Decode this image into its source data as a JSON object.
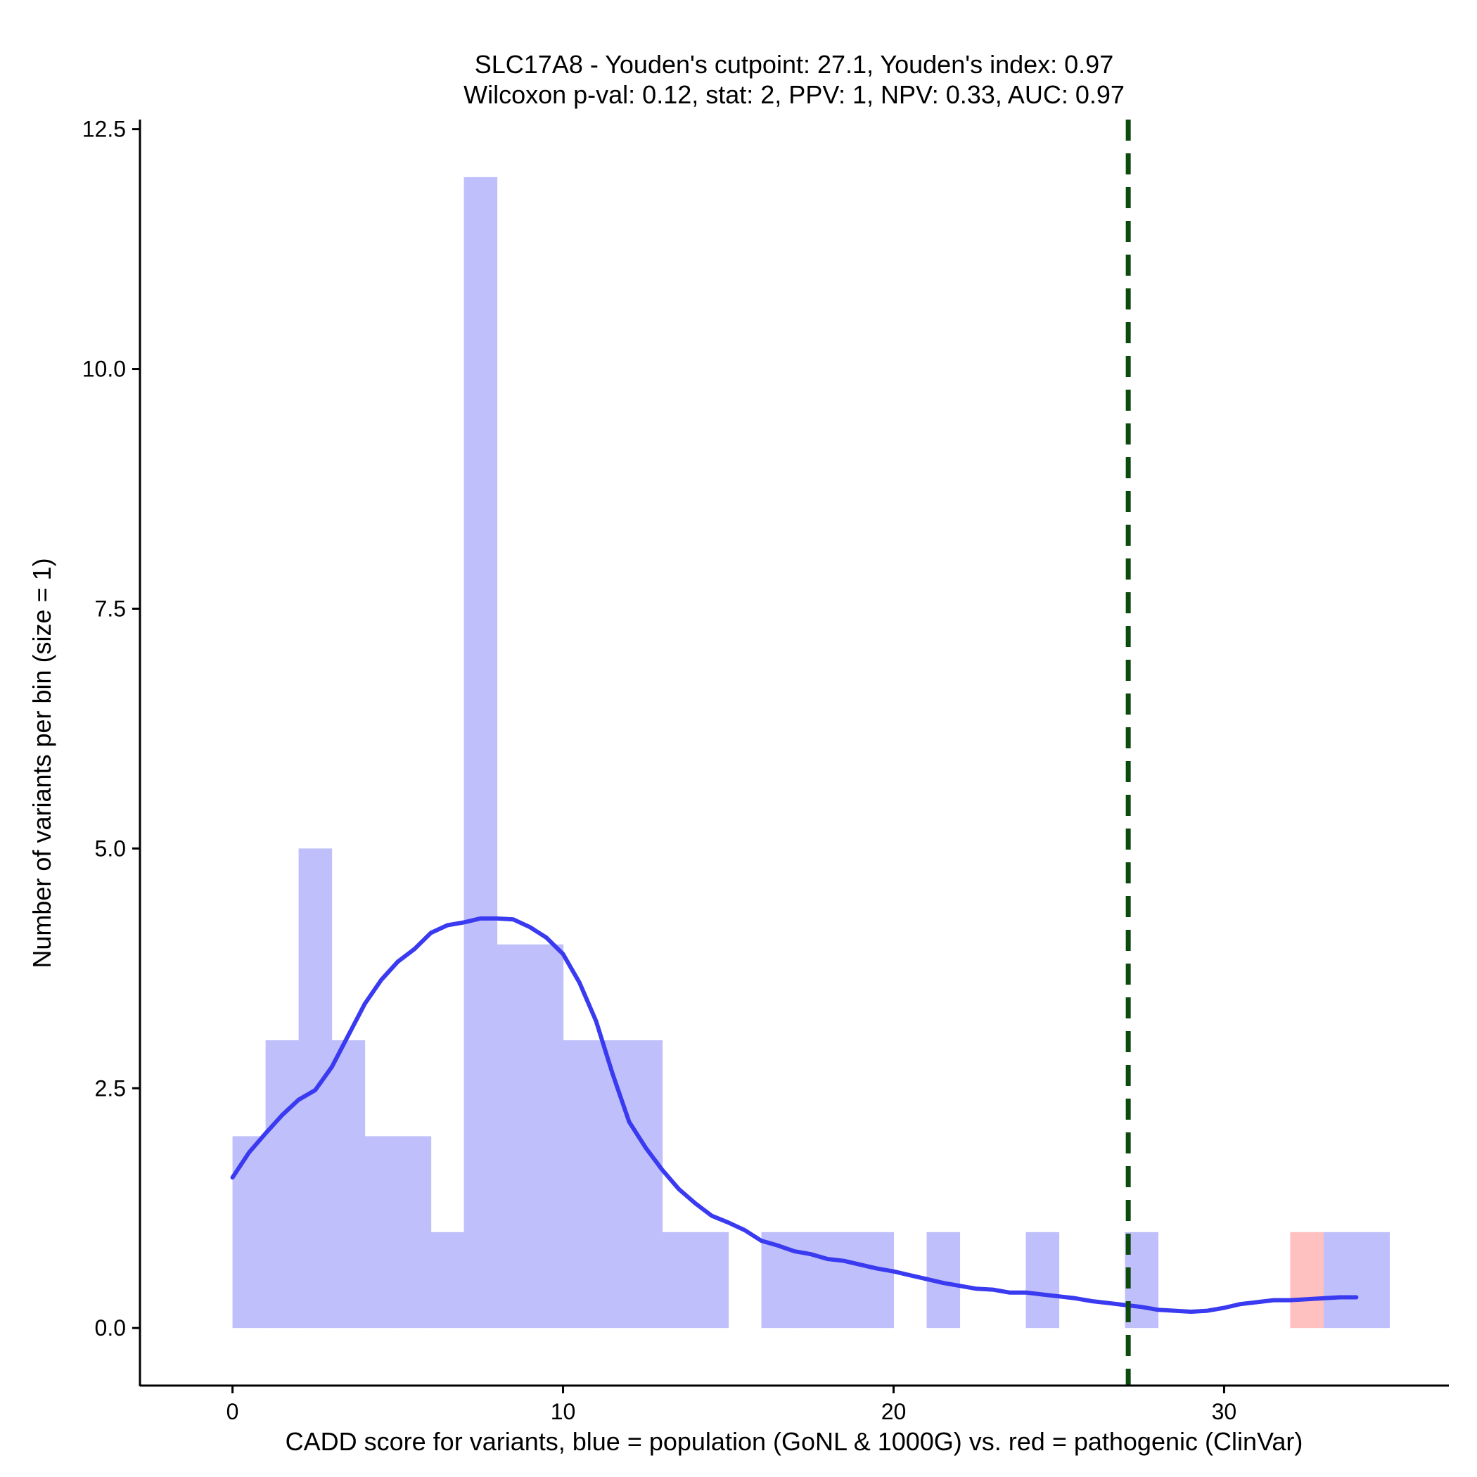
{
  "chart_data": {
    "type": "histogram",
    "title_line1": "SLC17A8 - Youden's cutpoint: 27.1, Youden's index: 0.97",
    "title_line2": "Wilcoxon p-val: 0.12, stat: 2, PPV: 1, NPV: 0.33, AUC: 0.97",
    "xlabel": "CADD score for variants, blue = population (GoNL & 1000G) vs. red = pathogenic (ClinVar)",
    "ylabel": "Number of variants per bin (size = 1)",
    "xlim": [
      -2.8,
      36.8
    ],
    "ylim": [
      -0.6,
      12.6
    ],
    "x_ticks": [
      0,
      10,
      20,
      30
    ],
    "x_tick_labels": [
      "0",
      "10",
      "20",
      "30"
    ],
    "y_ticks": [
      0,
      2.5,
      5,
      7.5,
      10,
      12.5
    ],
    "y_tick_labels": [
      "0.0",
      "2.5",
      "5.0",
      "7.5",
      "10.0",
      "12.5"
    ],
    "bin_width": 1,
    "colors": {
      "population": "#bfbffb",
      "pathogenic": "#ffc0c0",
      "density": "#3a3af0",
      "cutpoint": "#0d4a0d",
      "axis": "#000000"
    },
    "series": [
      {
        "name": "population",
        "bin_starts": [
          0,
          1,
          2,
          3,
          4,
          5,
          6,
          7,
          8,
          9,
          10,
          11,
          12,
          13,
          14,
          16,
          17,
          18,
          19,
          21,
          24,
          27,
          33,
          34
        ],
        "values": [
          2,
          3,
          5,
          3,
          2,
          2,
          1,
          12,
          4,
          4,
          3,
          3,
          3,
          1,
          1,
          1,
          1,
          1,
          1,
          1,
          1,
          1,
          1,
          1
        ]
      },
      {
        "name": "pathogenic",
        "bin_starts": [
          32
        ],
        "values": [
          1
        ]
      }
    ],
    "density": {
      "x": [
        0,
        0.5,
        1,
        1.5,
        2,
        2.5,
        3,
        3.5,
        4,
        4.5,
        5,
        5.5,
        6,
        6.5,
        7,
        7.5,
        8,
        8.5,
        9,
        9.5,
        10,
        10.5,
        11,
        11.5,
        12,
        12.5,
        13,
        13.5,
        14,
        14.5,
        15,
        15.5,
        16,
        16.5,
        17,
        17.5,
        18,
        18.5,
        19,
        19.5,
        20,
        20.5,
        21,
        21.5,
        22,
        22.5,
        23,
        23.5,
        24,
        24.5,
        25,
        25.5,
        26,
        26.5,
        27,
        27.5,
        28,
        28.5,
        29,
        29.5,
        30,
        30.5,
        31,
        31.5,
        32,
        32.5,
        33,
        33.5,
        34
      ],
      "y": [
        1.57,
        1.83,
        2.03,
        2.22,
        2.38,
        2.48,
        2.72,
        3.05,
        3.38,
        3.63,
        3.82,
        3.95,
        4.12,
        4.2,
        4.23,
        4.27,
        4.27,
        4.26,
        4.18,
        4.07,
        3.9,
        3.6,
        3.2,
        2.65,
        2.15,
        1.88,
        1.65,
        1.45,
        1.3,
        1.17,
        1.1,
        1.02,
        0.91,
        0.86,
        0.8,
        0.77,
        0.72,
        0.7,
        0.66,
        0.62,
        0.59,
        0.55,
        0.51,
        0.47,
        0.44,
        0.41,
        0.4,
        0.37,
        0.37,
        0.35,
        0.33,
        0.31,
        0.28,
        0.26,
        0.24,
        0.22,
        0.19,
        0.18,
        0.17,
        0.18,
        0.21,
        0.25,
        0.27,
        0.29,
        0.29,
        0.3,
        0.31,
        0.32,
        0.32
      ]
    },
    "cutpoint": 27.1
  }
}
